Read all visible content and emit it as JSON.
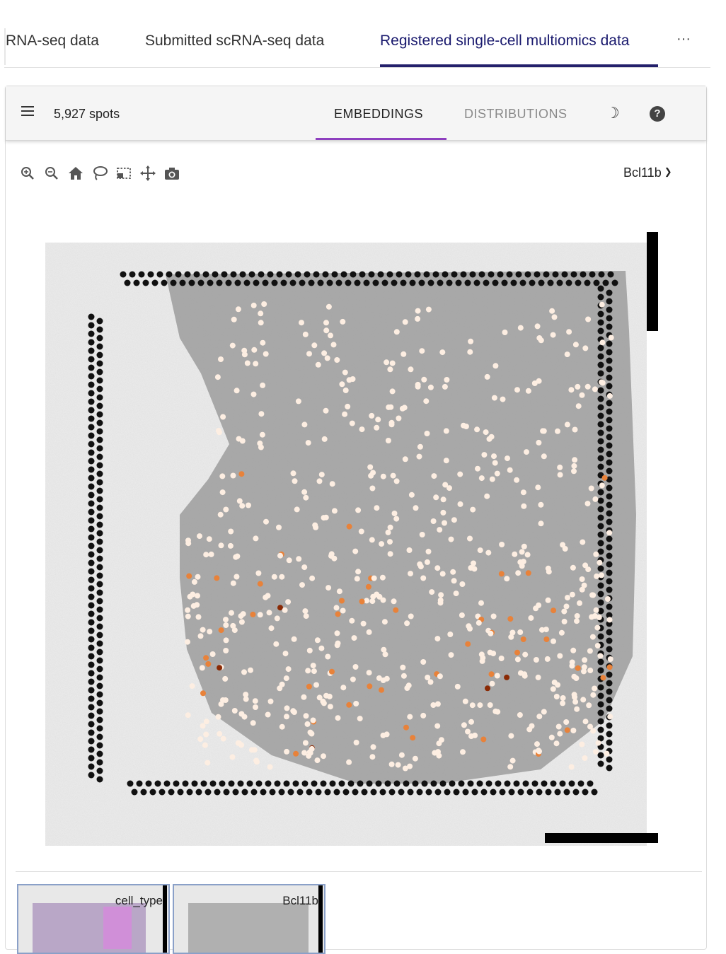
{
  "tabs": [
    {
      "label": "RNA-seq data"
    },
    {
      "label": "Submitted scRNA-seq data"
    },
    {
      "label": "Registered single-cell multiomics data"
    }
  ],
  "tabs_more_icon": "more-horizontal-icon",
  "header": {
    "spots_label": "5,927 spots",
    "embeddings_tab": "EMBEDDINGS",
    "distributions_tab": "DISTRIBUTIONS",
    "theme_icon": "moon-icon",
    "help_label": "?"
  },
  "toolbar": {
    "tools": [
      "zoom-in-icon",
      "zoom-out-icon",
      "home-icon",
      "lasso-icon",
      "box-select-icon",
      "pan-icon",
      "camera-icon"
    ]
  },
  "gene_selector": {
    "value": "Bcl11b"
  },
  "thumbnails": [
    {
      "label": "cell_type"
    },
    {
      "label": "Bcl11b"
    }
  ],
  "colors": {
    "tab_active": "#1a1a6e",
    "tab_underline": "#23206b",
    "embeddings_underline": "#8e3fbf",
    "spot_low": "#fdeee2",
    "spot_mid": "#e8823a",
    "spot_high": "#8a2a05"
  }
}
